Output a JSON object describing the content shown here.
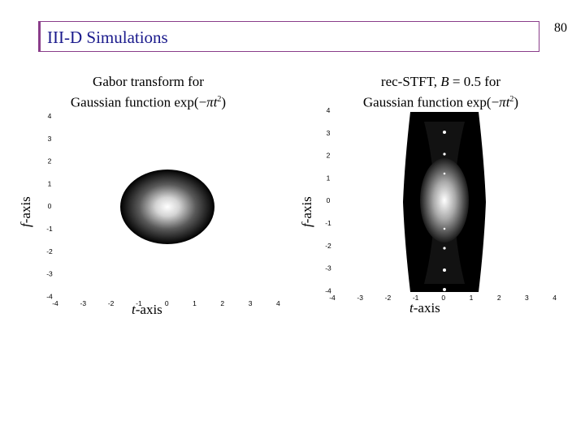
{
  "page_number": "80",
  "title": "III-D  Simulations",
  "panels": [
    {
      "caption_line1": "Gabor transform for",
      "caption_line2_prefix": "Gaussian function exp(−",
      "caption_line2_math": "πt",
      "caption_line2_sup": "2",
      "caption_line2_suffix": ")",
      "xlabel_var": "t",
      "xlabel_text": "-axis",
      "ylabel_var": "f",
      "ylabel_text": "-axis",
      "xticks": [
        "-4",
        "-3",
        "-2",
        "-1",
        "0",
        "1",
        "2",
        "3",
        "4"
      ],
      "yticks": [
        "4",
        "3",
        "2",
        "1",
        "0",
        "-1",
        "-2",
        "-3",
        "-4"
      ]
    },
    {
      "caption_line1_prefix": "rec-STFT, ",
      "caption_line1_var": "B",
      "caption_line1_suffix": " = 0.5 for",
      "caption_line2_prefix": "Gaussian function exp(−",
      "caption_line2_math": "πt",
      "caption_line2_sup": "2",
      "caption_line2_suffix": ")",
      "xlabel_var": "t",
      "xlabel_text": "-axis",
      "ylabel_var": "f",
      "ylabel_text": "-axis",
      "xticks": [
        "-4",
        "-3",
        "-2",
        "-1",
        "0",
        "1",
        "2",
        "3",
        "4"
      ],
      "yticks": [
        "4",
        "3",
        "2",
        "1",
        "0",
        "-1",
        "-2",
        "-3",
        "-4"
      ]
    }
  ]
}
